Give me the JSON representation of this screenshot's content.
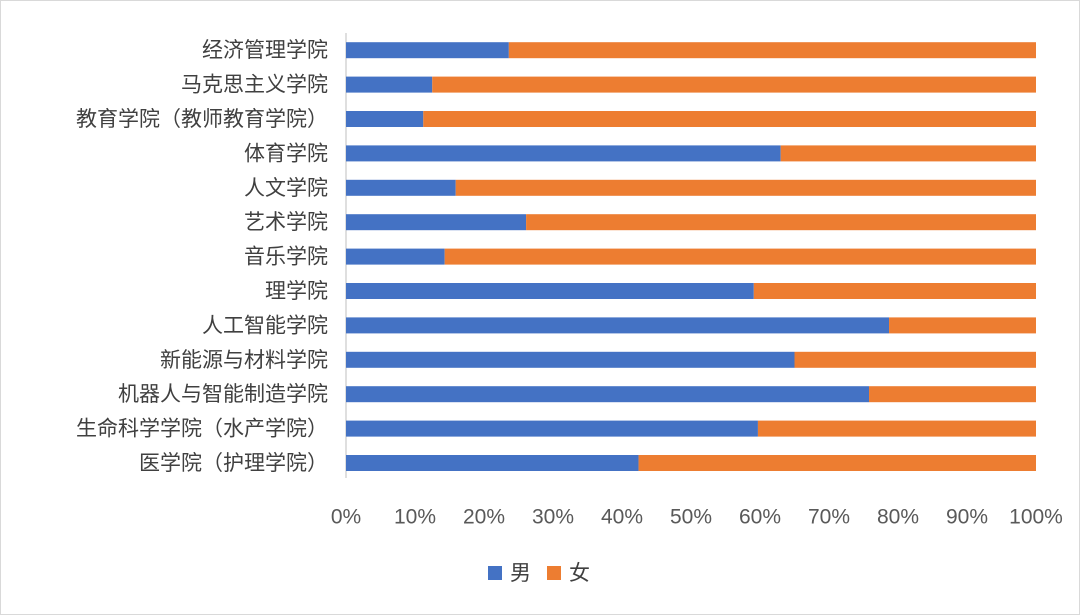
{
  "chart_data": {
    "type": "bar",
    "orientation": "horizontal",
    "stacked": "percent",
    "categories": [
      "经济管理学院",
      "马克思主义学院",
      "教育学院（教师教育学院）",
      "体育学院",
      "人文学院",
      "艺术学院",
      "音乐学院",
      "理学院",
      "人工智能学院",
      "新能源与材料学院",
      "机器人与智能制造学院",
      "生命科学学院（水产学院）",
      "医学院（护理学院）"
    ],
    "series": [
      {
        "name": "男",
        "color": "#4472C4",
        "values": [
          0.236,
          0.125,
          0.112,
          0.63,
          0.159,
          0.261,
          0.143,
          0.591,
          0.787,
          0.65,
          0.758,
          0.597,
          0.424
        ]
      },
      {
        "name": "女",
        "color": "#ED7D31",
        "values": [
          0.764,
          0.875,
          0.888,
          0.37,
          0.841,
          0.739,
          0.857,
          0.409,
          0.213,
          0.35,
          0.242,
          0.403,
          0.576
        ]
      }
    ],
    "x_ticks": [
      "0%",
      "10%",
      "20%",
      "30%",
      "40%",
      "50%",
      "60%",
      "70%",
      "80%",
      "90%",
      "100%"
    ],
    "xlim": [
      0,
      1
    ],
    "grid": false,
    "legend": "bottom-center",
    "title": "",
    "xlabel": "",
    "ylabel": ""
  }
}
